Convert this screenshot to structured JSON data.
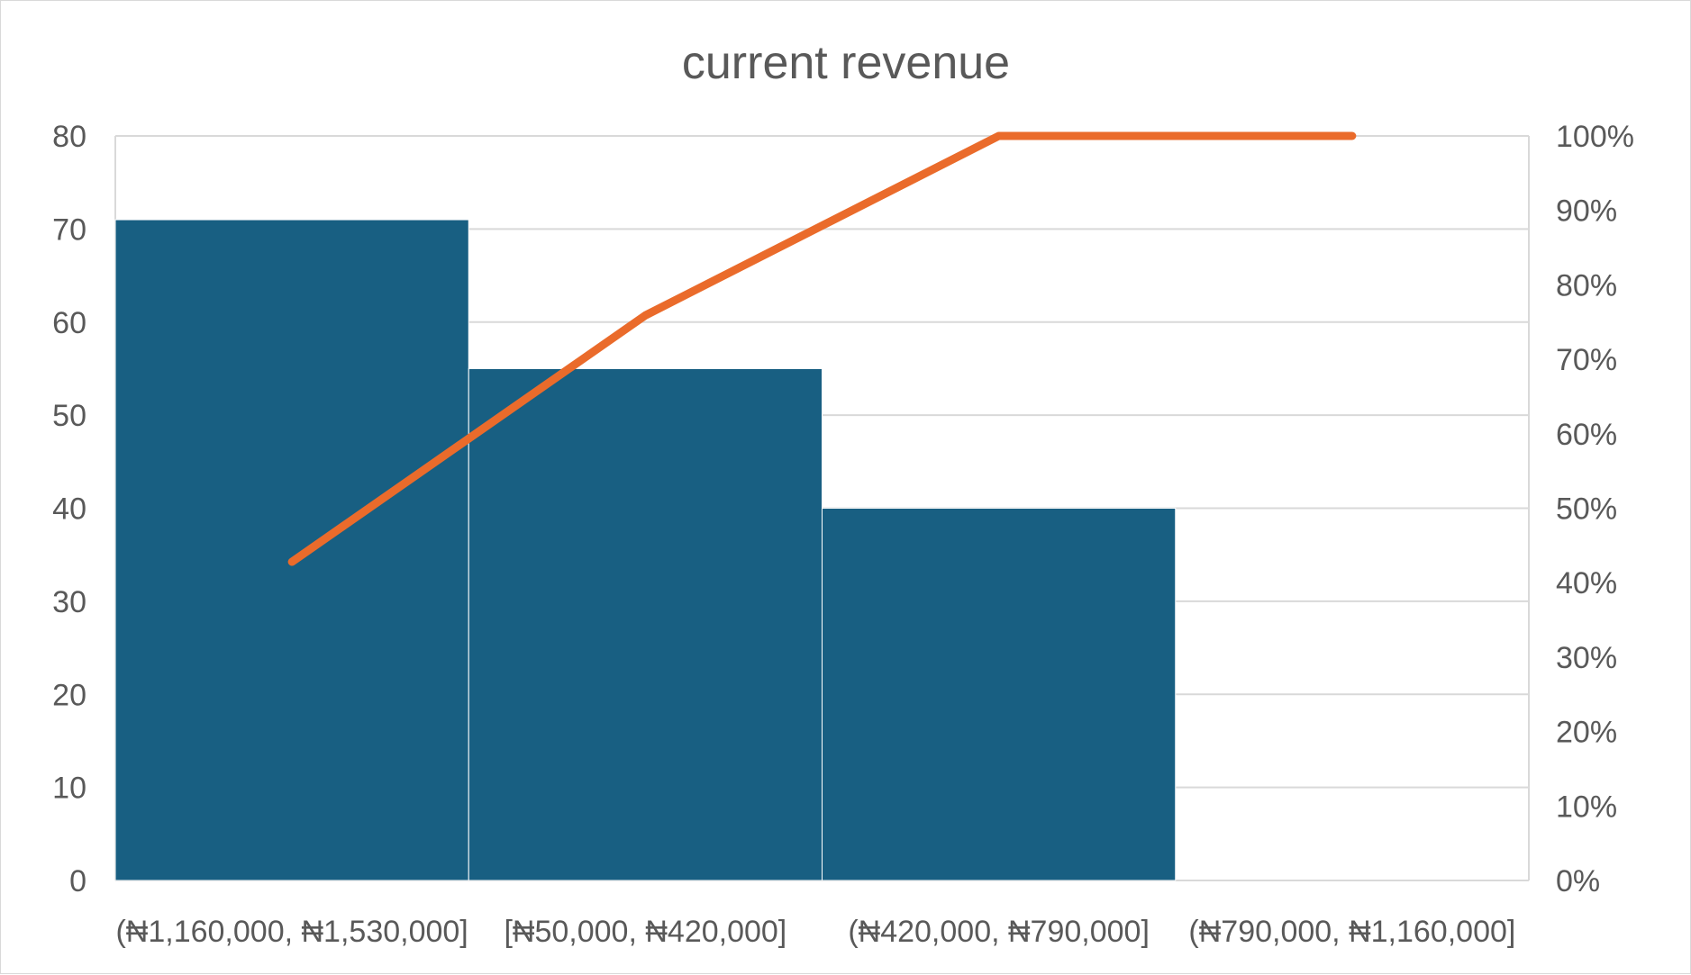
{
  "chart_data": {
    "type": "bar",
    "subtype": "pareto",
    "title": "current revenue",
    "categories": [
      "(₦1,160,000, ₦1,530,000]",
      "[₦50,000, ₦420,000]",
      "(₦420,000, ₦790,000]",
      "(₦790,000, ₦1,160,000]"
    ],
    "series": [
      {
        "type": "bar",
        "values": [
          71,
          55,
          40,
          0
        ],
        "color": "#185f82"
      },
      {
        "type": "line",
        "axis": "secondary",
        "values": [
          0.428,
          0.759,
          1.0,
          1.0
        ],
        "color": "#ea6b2b"
      }
    ],
    "ylim": [
      0,
      80
    ],
    "y_ticks": [
      "0",
      "10",
      "20",
      "30",
      "40",
      "50",
      "60",
      "70",
      "80"
    ],
    "y2lim": [
      0,
      1
    ],
    "y2_ticks": [
      "0%",
      "10%",
      "20%",
      "30%",
      "40%",
      "50%",
      "60%",
      "70%",
      "80%",
      "90%",
      "100%"
    ],
    "grid": true,
    "gridline_color": "#d9d9d9"
  }
}
